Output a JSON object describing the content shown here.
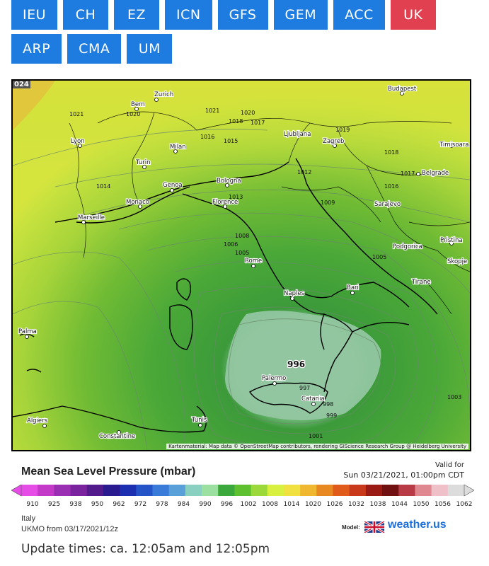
{
  "tabs": [
    {
      "label": "IEU",
      "active": false
    },
    {
      "label": "CH",
      "active": false
    },
    {
      "label": "EZ",
      "active": false
    },
    {
      "label": "ICN",
      "active": false
    },
    {
      "label": "GFS",
      "active": false
    },
    {
      "label": "GEM",
      "active": false
    },
    {
      "label": "ACC",
      "active": false
    },
    {
      "label": "UK",
      "active": true
    },
    {
      "label": "ARP",
      "active": false
    },
    {
      "label": "CMA",
      "active": false
    },
    {
      "label": "UM",
      "active": false
    }
  ],
  "map": {
    "corner_label": "024",
    "credit": "Kartenmaterial: Map data © OpenStreetMap contributors, rendering GIScience Research Group @ Heidelberg University",
    "cities": [
      "Zurich",
      "Bern",
      "Lyon",
      "Milan",
      "Turin",
      "Genoa",
      "Monaco",
      "Marseille",
      "Bologna",
      "Florence",
      "Rome",
      "Naples",
      "Bari",
      "Palermo",
      "Catania",
      "Tunis",
      "Algiers",
      "Constantine",
      "Palma",
      "Ljubljana",
      "Zagreb",
      "Budapest",
      "Timisoara",
      "Belgrade",
      "Sarajevo",
      "Podgorica",
      "Pristina",
      "Skopje",
      "Tirane"
    ],
    "isobar_labels": [
      "1021",
      "1020",
      "1021",
      "1020",
      "1018",
      "1017",
      "1019",
      "1016",
      "1015",
      "1014",
      "1013",
      "1012",
      "1009",
      "1008",
      "1006",
      "1005",
      "1005",
      "1018",
      "1017",
      "1016",
      "1003",
      "1001",
      "999",
      "998",
      "997",
      "996"
    ],
    "low_center": "996"
  },
  "legend": {
    "title": "Mean Sea Level Pressure (mbar)",
    "valid_label": "Valid for",
    "valid_date": "Sun 03/21/2021, 01:00pm CDT",
    "ticks": [
      "910",
      "925",
      "938",
      "950",
      "962",
      "972",
      "978",
      "984",
      "990",
      "996",
      "1002",
      "1008",
      "1014",
      "1020",
      "1026",
      "1032",
      "1038",
      "1044",
      "1050",
      "1056",
      "1062"
    ],
    "colors": [
      "#e64ce6",
      "#c43ac8",
      "#9b2fb3",
      "#7a239e",
      "#531a8c",
      "#2a1a90",
      "#1c2fb0",
      "#2454c8",
      "#3a7ad8",
      "#5aa0d8",
      "#8ad0c0",
      "#9be0a0",
      "#3aa83a",
      "#5ec02e",
      "#9bd83a",
      "#d8f040",
      "#f0e040",
      "#f0b830",
      "#e88820",
      "#e05a1a",
      "#c8381a",
      "#9a1a14",
      "#701010",
      "#b83a44",
      "#e08890",
      "#f0c0c8",
      "#dcdcdc"
    ]
  },
  "footer": {
    "region": "Italy",
    "run": "UKMO from 03/17/2021/12z",
    "model_label": "Model:",
    "brand": "weather.us",
    "update_times": "Update times: ca. 12:05am and 12:05pm"
  }
}
